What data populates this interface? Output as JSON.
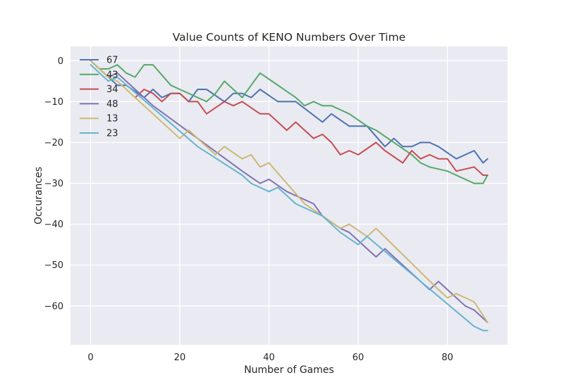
{
  "chart_data": {
    "type": "line",
    "title": "Value Counts of KENO Numbers Over Time",
    "xlabel": "Number of Games",
    "ylabel": "Occurances",
    "xlim": [
      -4.5,
      93.5
    ],
    "ylim": [
      -69.5,
      3.5
    ],
    "xticks": [
      0,
      20,
      40,
      60,
      80
    ],
    "yticks": [
      0,
      -10,
      -20,
      -30,
      -40,
      -50,
      -60
    ],
    "grid": true,
    "legend_position": "upper-left",
    "series": [
      {
        "name": "67",
        "color": "#4c72b0",
        "points": [
          [
            0,
            0
          ],
          [
            2,
            -2
          ],
          [
            6,
            -6
          ],
          [
            8,
            -6
          ],
          [
            12,
            -9
          ],
          [
            14,
            -7
          ],
          [
            16,
            -9
          ],
          [
            18,
            -8
          ],
          [
            20,
            -8
          ],
          [
            22,
            -10
          ],
          [
            24,
            -7
          ],
          [
            26,
            -7
          ],
          [
            30,
            -10
          ],
          [
            32,
            -8
          ],
          [
            34,
            -8
          ],
          [
            36,
            -9
          ],
          [
            38,
            -7
          ],
          [
            42,
            -10
          ],
          [
            46,
            -10
          ],
          [
            52,
            -15
          ],
          [
            54,
            -13
          ],
          [
            58,
            -16
          ],
          [
            60,
            -16
          ],
          [
            62,
            -16
          ],
          [
            66,
            -21
          ],
          [
            68,
            -19
          ],
          [
            70,
            -21
          ],
          [
            72,
            -21
          ],
          [
            74,
            -20
          ],
          [
            76,
            -20
          ],
          [
            78,
            -21
          ],
          [
            82,
            -24
          ],
          [
            84,
            -23
          ],
          [
            86,
            -22
          ],
          [
            88,
            -25
          ],
          [
            89,
            -24
          ]
        ]
      },
      {
        "name": "43",
        "color": "#55a868",
        "points": [
          [
            0,
            0
          ],
          [
            2,
            -2
          ],
          [
            4,
            -2
          ],
          [
            6,
            -1
          ],
          [
            8,
            -3
          ],
          [
            10,
            -4
          ],
          [
            12,
            -1
          ],
          [
            14,
            -1
          ],
          [
            18,
            -6
          ],
          [
            20,
            -7
          ],
          [
            26,
            -10
          ],
          [
            28,
            -8
          ],
          [
            30,
            -5
          ],
          [
            34,
            -9
          ],
          [
            38,
            -3
          ],
          [
            46,
            -9
          ],
          [
            48,
            -11
          ],
          [
            50,
            -10
          ],
          [
            52,
            -11
          ],
          [
            54,
            -11
          ],
          [
            56,
            -12
          ],
          [
            58,
            -13
          ],
          [
            62,
            -16
          ],
          [
            64,
            -17
          ],
          [
            72,
            -23
          ],
          [
            74,
            -25
          ],
          [
            76,
            -26
          ],
          [
            80,
            -27
          ],
          [
            82,
            -28
          ],
          [
            86,
            -30
          ],
          [
            88,
            -30
          ],
          [
            89,
            -28
          ]
        ]
      },
      {
        "name": "34",
        "color": "#c44e52",
        "points": [
          [
            10,
            -9
          ],
          [
            12,
            -7
          ],
          [
            14,
            -8
          ],
          [
            16,
            -10
          ],
          [
            18,
            -8
          ],
          [
            20,
            -8
          ],
          [
            22,
            -10
          ],
          [
            24,
            -10
          ],
          [
            26,
            -13
          ],
          [
            30,
            -10
          ],
          [
            32,
            -11
          ],
          [
            34,
            -10
          ],
          [
            38,
            -13
          ],
          [
            40,
            -13
          ],
          [
            44,
            -17
          ],
          [
            46,
            -15
          ],
          [
            48,
            -17
          ],
          [
            50,
            -19
          ],
          [
            52,
            -18
          ],
          [
            54,
            -20
          ],
          [
            56,
            -23
          ],
          [
            58,
            -22
          ],
          [
            60,
            -23
          ],
          [
            64,
            -20
          ],
          [
            66,
            -22
          ],
          [
            70,
            -25
          ],
          [
            72,
            -22
          ],
          [
            74,
            -24
          ],
          [
            76,
            -23
          ],
          [
            78,
            -24
          ],
          [
            80,
            -24
          ],
          [
            82,
            -27
          ],
          [
            86,
            -26
          ],
          [
            88,
            -28
          ],
          [
            89,
            -28
          ]
        ]
      },
      {
        "name": "48",
        "color": "#8172b2",
        "points": [
          [
            0,
            0
          ],
          [
            4,
            -4
          ],
          [
            6,
            -3
          ],
          [
            14,
            -11
          ],
          [
            34,
            -27
          ],
          [
            38,
            -30
          ],
          [
            40,
            -29
          ],
          [
            44,
            -32
          ],
          [
            50,
            -35
          ],
          [
            52,
            -38
          ],
          [
            56,
            -41
          ],
          [
            58,
            -42
          ],
          [
            64,
            -48
          ],
          [
            66,
            -46
          ],
          [
            76,
            -56
          ],
          [
            78,
            -54
          ],
          [
            84,
            -60
          ],
          [
            86,
            -61
          ],
          [
            89,
            -64
          ]
        ]
      },
      {
        "name": "13",
        "color": "#ccb974",
        "points": [
          [
            0,
            0
          ],
          [
            4,
            -4
          ],
          [
            6,
            -5
          ],
          [
            20,
            -19
          ],
          [
            22,
            -17
          ],
          [
            28,
            -23
          ],
          [
            30,
            -21
          ],
          [
            34,
            -24
          ],
          [
            36,
            -23
          ],
          [
            38,
            -26
          ],
          [
            40,
            -25
          ],
          [
            48,
            -35
          ],
          [
            52,
            -38
          ],
          [
            56,
            -41
          ],
          [
            58,
            -40
          ],
          [
            62,
            -43
          ],
          [
            64,
            -41
          ],
          [
            78,
            -56
          ],
          [
            80,
            -58
          ],
          [
            82,
            -57
          ],
          [
            86,
            -59
          ],
          [
            89,
            -64
          ]
        ]
      },
      {
        "name": "23",
        "color": "#64b5cd",
        "points": [
          [
            0,
            -1
          ],
          [
            4,
            -5
          ],
          [
            6,
            -4
          ],
          [
            24,
            -21
          ],
          [
            34,
            -28
          ],
          [
            36,
            -30
          ],
          [
            40,
            -32
          ],
          [
            42,
            -31
          ],
          [
            46,
            -35
          ],
          [
            52,
            -38
          ],
          [
            56,
            -42
          ],
          [
            60,
            -45
          ],
          [
            62,
            -43
          ],
          [
            86,
            -65
          ],
          [
            88,
            -66
          ],
          [
            89,
            -66
          ]
        ]
      }
    ]
  }
}
